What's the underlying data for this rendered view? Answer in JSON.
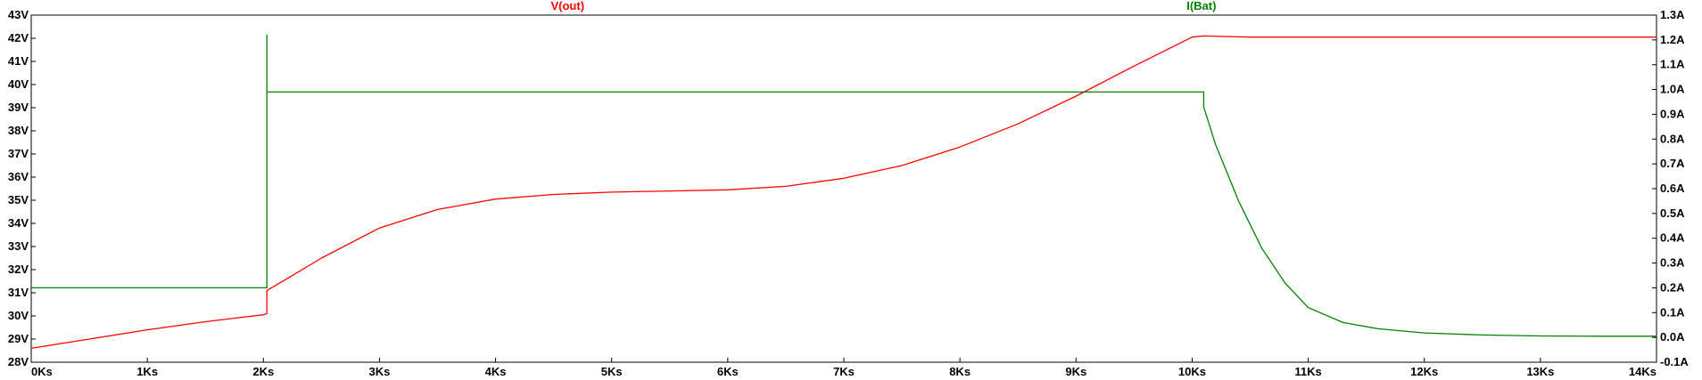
{
  "chart_data": {
    "type": "line",
    "grid": false,
    "x_axis": {
      "range": [
        0,
        14
      ],
      "unit": "Ks",
      "ticks": [
        0,
        1,
        2,
        3,
        4,
        5,
        6,
        7,
        8,
        9,
        10,
        11,
        12,
        13,
        14
      ],
      "tick_labels": [
        "0Ks",
        "1Ks",
        "2Ks",
        "3Ks",
        "4Ks",
        "5Ks",
        "6Ks",
        "7Ks",
        "8Ks",
        "9Ks",
        "10Ks",
        "11Ks",
        "12Ks",
        "13Ks",
        "14Ks"
      ]
    },
    "y_left": {
      "range": [
        28,
        43
      ],
      "ticks": [
        28,
        29,
        30,
        31,
        32,
        33,
        34,
        35,
        36,
        37,
        38,
        39,
        40,
        41,
        42,
        43
      ],
      "tick_labels": [
        "28V",
        "29V",
        "30V",
        "31V",
        "32V",
        "33V",
        "34V",
        "35V",
        "36V",
        "37V",
        "38V",
        "39V",
        "40V",
        "41V",
        "42V",
        "43V"
      ]
    },
    "y_right": {
      "range": [
        -0.1,
        1.3
      ],
      "ticks": [
        -0.1,
        0.0,
        0.1,
        0.2,
        0.3,
        0.4,
        0.5,
        0.6,
        0.7,
        0.8,
        0.9,
        1.0,
        1.1,
        1.2,
        1.3
      ],
      "tick_labels": [
        "-0.1A",
        "0.0A",
        "0.1A",
        "0.2A",
        "0.3A",
        "0.4A",
        "0.5A",
        "0.6A",
        "0.7A",
        "0.8A",
        "0.9A",
        "1.0A",
        "1.1A",
        "1.2A",
        "1.3A"
      ]
    },
    "series": [
      {
        "name": "V(out)",
        "axis": "left",
        "color": "#ff0000",
        "x": [
          0,
          0.5,
          1.0,
          1.5,
          2.0,
          2.03,
          2.03,
          2.2,
          2.5,
          3.0,
          3.5,
          4.0,
          4.5,
          5.0,
          5.5,
          6.0,
          6.5,
          7.0,
          7.5,
          8.0,
          8.5,
          9.0,
          9.5,
          10.0,
          10.1,
          10.5,
          11.0,
          12.0,
          13.0,
          14.0
        ],
        "y": [
          28.6,
          29.0,
          29.4,
          29.75,
          30.05,
          30.1,
          31.1,
          31.6,
          32.5,
          33.8,
          34.6,
          35.05,
          35.25,
          35.35,
          35.4,
          35.45,
          35.6,
          35.95,
          36.5,
          37.3,
          38.3,
          39.5,
          40.8,
          42.05,
          42.1,
          42.05,
          42.05,
          42.05,
          42.05,
          42.05
        ]
      },
      {
        "name": "I(Bat)",
        "axis": "right",
        "color": "#008000",
        "x": [
          0,
          2.03,
          2.03,
          2.03,
          2.04,
          4.0,
          6.0,
          8.0,
          10.1,
          10.1,
          10.2,
          10.4,
          10.6,
          10.8,
          11.0,
          11.3,
          11.6,
          12.0,
          12.5,
          13.0,
          13.5,
          14.0
        ],
        "y": [
          0.2,
          0.2,
          1.22,
          0.99,
          0.99,
          0.99,
          0.99,
          0.99,
          0.99,
          0.93,
          0.78,
          0.55,
          0.36,
          0.22,
          0.12,
          0.06,
          0.035,
          0.018,
          0.01,
          0.006,
          0.005,
          0.005
        ]
      }
    ]
  }
}
